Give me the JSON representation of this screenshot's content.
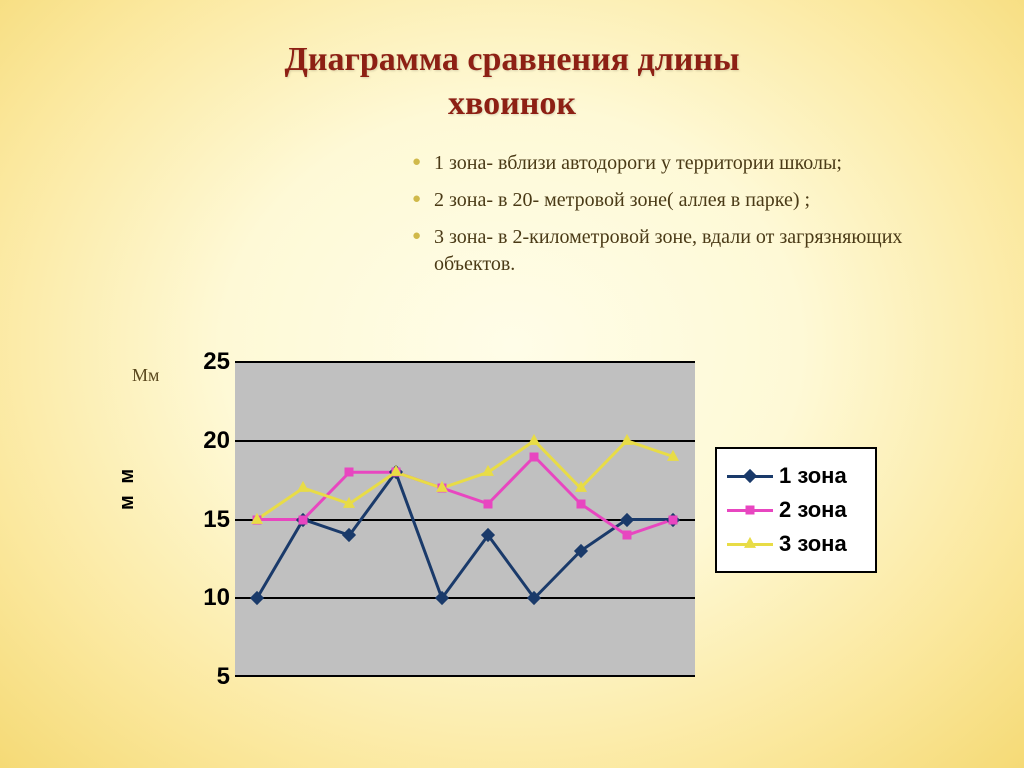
{
  "title_line1": "Диаграмма сравнения длины",
  "title_line2": "хвоинок",
  "bullets": [
    "1 зона- вблизи автодороги у территории школы;",
    "2 зона-  в 20- метровой зоне( аллея в парке) ;",
    "3 зона- в 2-километровой зоне, вдали от загрязняющих  объектов."
  ],
  "y_unit_label": "Мм",
  "y_axis_label": "м м",
  "chart": {
    "type": "line",
    "ylim": [
      5,
      25
    ],
    "yticks": [
      5,
      10,
      15,
      20,
      25
    ],
    "x_count": 10,
    "plot_bg": "#c0c0c0",
    "grid_color": "#000000",
    "series": [
      {
        "name": "1 зона",
        "color": "#1a3a6a",
        "marker": "diamond",
        "data": [
          10,
          15,
          14,
          18,
          10,
          14,
          10,
          13,
          15,
          15
        ]
      },
      {
        "name": "2 зона",
        "color": "#e846c0",
        "marker": "square",
        "data": [
          15,
          15,
          18,
          18,
          17,
          16,
          19,
          16,
          14,
          15
        ]
      },
      {
        "name": "3 зона",
        "color": "#e8dc46",
        "marker": "triangle",
        "data": [
          15,
          17,
          16,
          18,
          17,
          18,
          20,
          17,
          20,
          19
        ]
      }
    ]
  }
}
